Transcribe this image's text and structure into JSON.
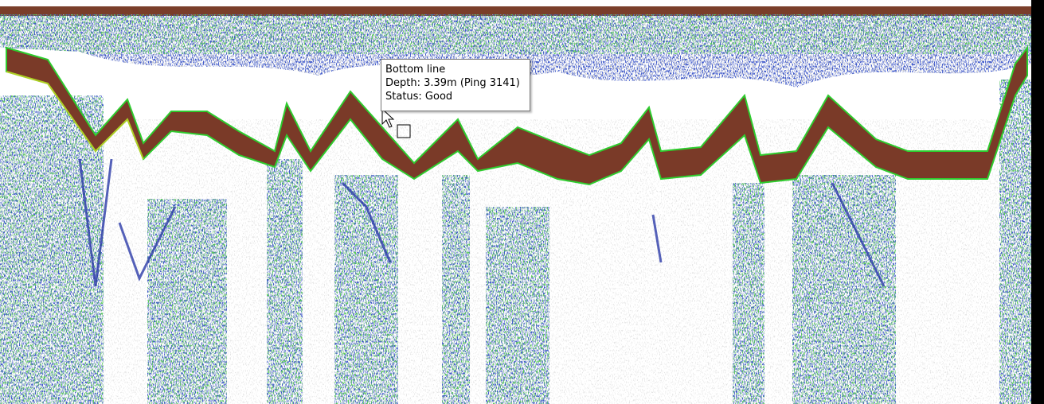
{
  "tooltip": {
    "title": "Bottom line",
    "depth": "Depth: 3.39m (Ping 3141)",
    "status": "Status: Good"
  }
}
